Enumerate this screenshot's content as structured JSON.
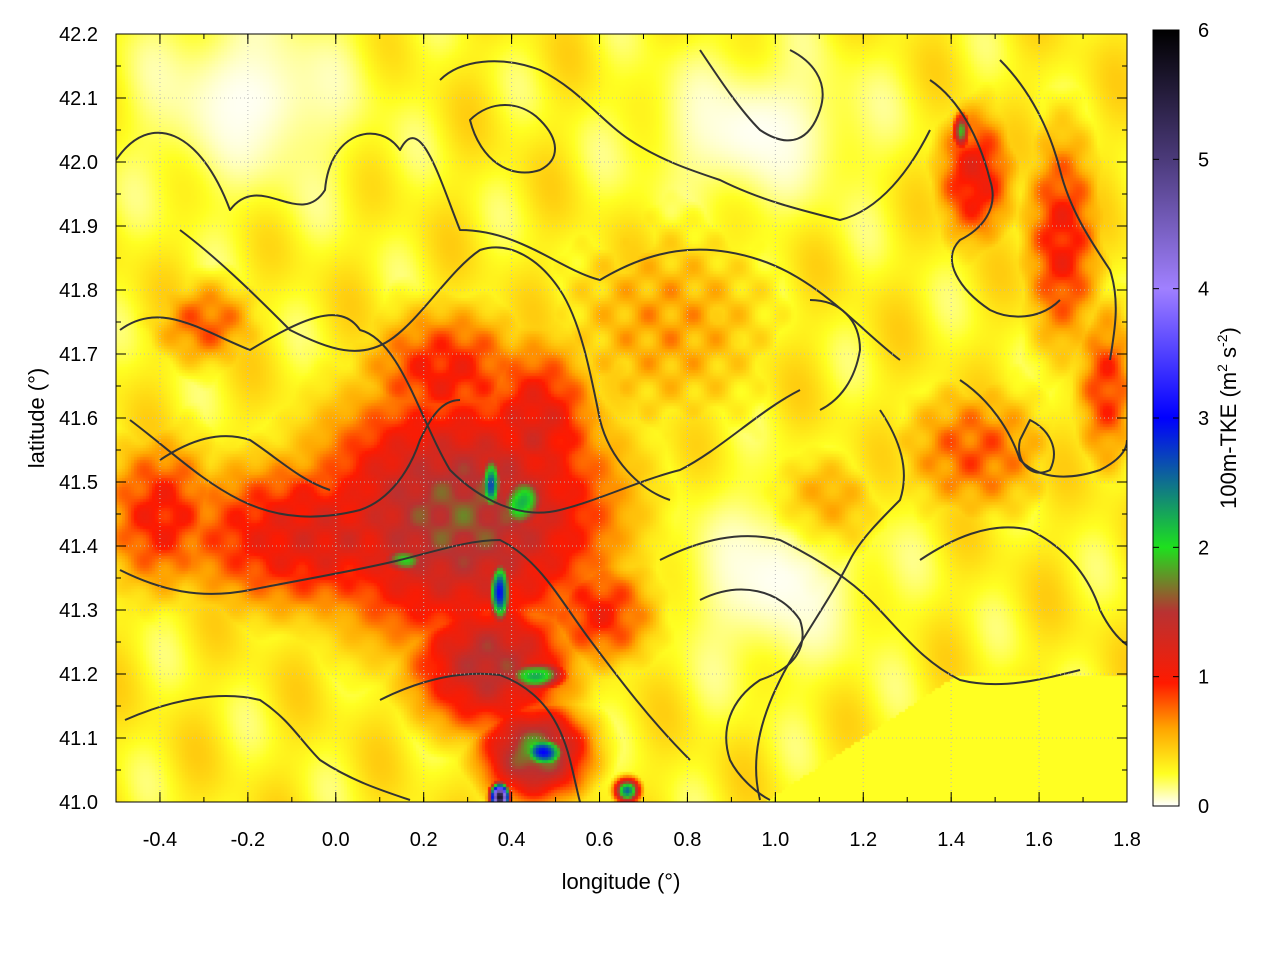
{
  "chart_data": {
    "type": "heatmap",
    "title": "",
    "xlabel": "longitude (°)",
    "ylabel": "latitude (°)",
    "colorbar_label": {
      "base": "100m-TKE (m",
      "sup1": "2",
      "mid": " s",
      "sup2": "-2",
      "end": ")"
    },
    "xlim": [
      -0.5,
      1.8
    ],
    "ylim": [
      41.0,
      42.2
    ],
    "x_ticks": [
      -0.4,
      -0.2,
      0.0,
      0.2,
      0.4,
      0.6,
      0.8,
      1.0,
      1.2,
      1.4,
      1.6,
      1.8
    ],
    "x_tick_labels": [
      "-0.4",
      "-0.2",
      "0.0",
      "0.2",
      "0.4",
      "0.6",
      "0.8",
      "1.0",
      "1.2",
      "1.4",
      "1.6",
      "1.8"
    ],
    "y_ticks": [
      41.0,
      41.1,
      41.2,
      41.3,
      41.4,
      41.5,
      41.6,
      41.7,
      41.8,
      41.9,
      42.0,
      42.1,
      42.2
    ],
    "y_tick_labels": [
      "41.0",
      "41.1",
      "41.2",
      "41.3",
      "41.4",
      "41.5",
      "41.6",
      "41.7",
      "41.8",
      "41.9",
      "42.0",
      "42.1",
      "42.2"
    ],
    "colorbar": {
      "range": [
        0,
        6
      ],
      "ticks": [
        0,
        1,
        2,
        3,
        4,
        5,
        6
      ],
      "tick_labels": [
        "0",
        "1",
        "2",
        "3",
        "4",
        "5",
        "6"
      ],
      "stops": [
        {
          "v": 0.0,
          "color": "#ffffff"
        },
        {
          "v": 0.25,
          "color": "#ffff22"
        },
        {
          "v": 0.6,
          "color": "#ffa500"
        },
        {
          "v": 0.95,
          "color": "#ff1a00"
        },
        {
          "v": 1.5,
          "color": "#b83232"
        },
        {
          "v": 2.0,
          "color": "#1ee01e"
        },
        {
          "v": 3.0,
          "color": "#0000ff"
        },
        {
          "v": 4.0,
          "color": "#a080ff"
        },
        {
          "v": 5.0,
          "color": "#4b3a7a"
        },
        {
          "v": 6.0,
          "color": "#000000"
        }
      ]
    },
    "grid": "dotted, at ticks",
    "contours": "terrain elevation (dark gray lines)",
    "hotspots": [
      {
        "lon": 0.28,
        "lat": 41.45,
        "tke": 1.6,
        "rlon": 0.38,
        "rlat": 0.22
      },
      {
        "lon": 0.0,
        "lat": 41.42,
        "tke": 1.2,
        "rlon": 0.45,
        "rlat": 0.14
      },
      {
        "lon": -0.4,
        "lat": 41.45,
        "tke": 1.0,
        "rlon": 0.16,
        "rlat": 0.14
      },
      {
        "lon": 0.25,
        "lat": 41.67,
        "tke": 1.0,
        "rlon": 0.22,
        "rlat": 0.12
      },
      {
        "lon": 0.45,
        "lat": 41.58,
        "tke": 1.2,
        "rlon": 0.16,
        "rlat": 0.16
      },
      {
        "lon": 0.35,
        "lat": 41.22,
        "tke": 1.5,
        "rlon": 0.2,
        "rlat": 0.12
      },
      {
        "lon": 0.45,
        "lat": 41.08,
        "tke": 1.8,
        "rlon": 0.13,
        "rlat": 0.08
      },
      {
        "lon": 0.6,
        "lat": 41.3,
        "tke": 1.0,
        "rlon": 0.16,
        "rlat": 0.1
      },
      {
        "lon": 0.42,
        "lat": 41.47,
        "tke": 2.2,
        "rlon": 0.06,
        "rlat": 0.05
      },
      {
        "lon": 0.35,
        "lat": 41.5,
        "tke": 2.6,
        "rlon": 0.025,
        "rlat": 0.05
      },
      {
        "lon": 0.37,
        "lat": 41.33,
        "tke": 3.0,
        "rlon": 0.025,
        "rlat": 0.05
      },
      {
        "lon": 0.15,
        "lat": 41.38,
        "tke": 2.0,
        "rlon": 0.06,
        "rlat": 0.025
      },
      {
        "lon": 0.45,
        "lat": 41.2,
        "tke": 2.3,
        "rlon": 0.07,
        "rlat": 0.025
      },
      {
        "lon": 0.47,
        "lat": 41.08,
        "tke": 3.0,
        "rlon": 0.05,
        "rlat": 0.025
      },
      {
        "lon": 0.37,
        "lat": 41.01,
        "tke": 5.8,
        "rlon": 0.02,
        "rlat": 0.02
      },
      {
        "lon": 0.66,
        "lat": 41.02,
        "tke": 2.4,
        "rlon": 0.03,
        "rlat": 0.02
      },
      {
        "lon": 1.45,
        "lat": 41.98,
        "tke": 1.1,
        "rlon": 0.1,
        "rlat": 0.12
      },
      {
        "lon": 1.65,
        "lat": 41.88,
        "tke": 1.0,
        "rlon": 0.1,
        "rlat": 0.2
      },
      {
        "lon": 1.75,
        "lat": 41.65,
        "tke": 0.9,
        "rlon": 0.08,
        "rlat": 0.15
      },
      {
        "lon": 1.1,
        "lat": 41.45,
        "tke": 0.9,
        "rlon": 0.14,
        "rlat": 0.1
      },
      {
        "lon": 1.45,
        "lat": 41.55,
        "tke": 0.8,
        "rlon": 0.2,
        "rlat": 0.12
      },
      {
        "lon": 0.75,
        "lat": 41.75,
        "tke": 0.6,
        "rlon": 0.3,
        "rlat": 0.2
      },
      {
        "lon": -0.3,
        "lat": 41.75,
        "tke": 0.8,
        "rlon": 0.14,
        "rlat": 0.08
      },
      {
        "lon": 1.42,
        "lat": 42.05,
        "tke": 2.0,
        "rlon": 0.02,
        "rlat": 0.03
      }
    ],
    "low_zones": [
      {
        "lon": -0.2,
        "lat": 42.1,
        "rlon": 0.25,
        "rlat": 0.15
      },
      {
        "lon": 0.95,
        "lat": 42.05,
        "rlon": 0.25,
        "rlat": 0.12
      },
      {
        "lon": 1.0,
        "lat": 41.35,
        "rlon": 0.22,
        "rlat": 0.14
      }
    ],
    "plateau": {
      "tke": 0.25,
      "lon": [
        0.97,
        1.8
      ],
      "lat": [
        41.0,
        41.2
      ]
    }
  }
}
